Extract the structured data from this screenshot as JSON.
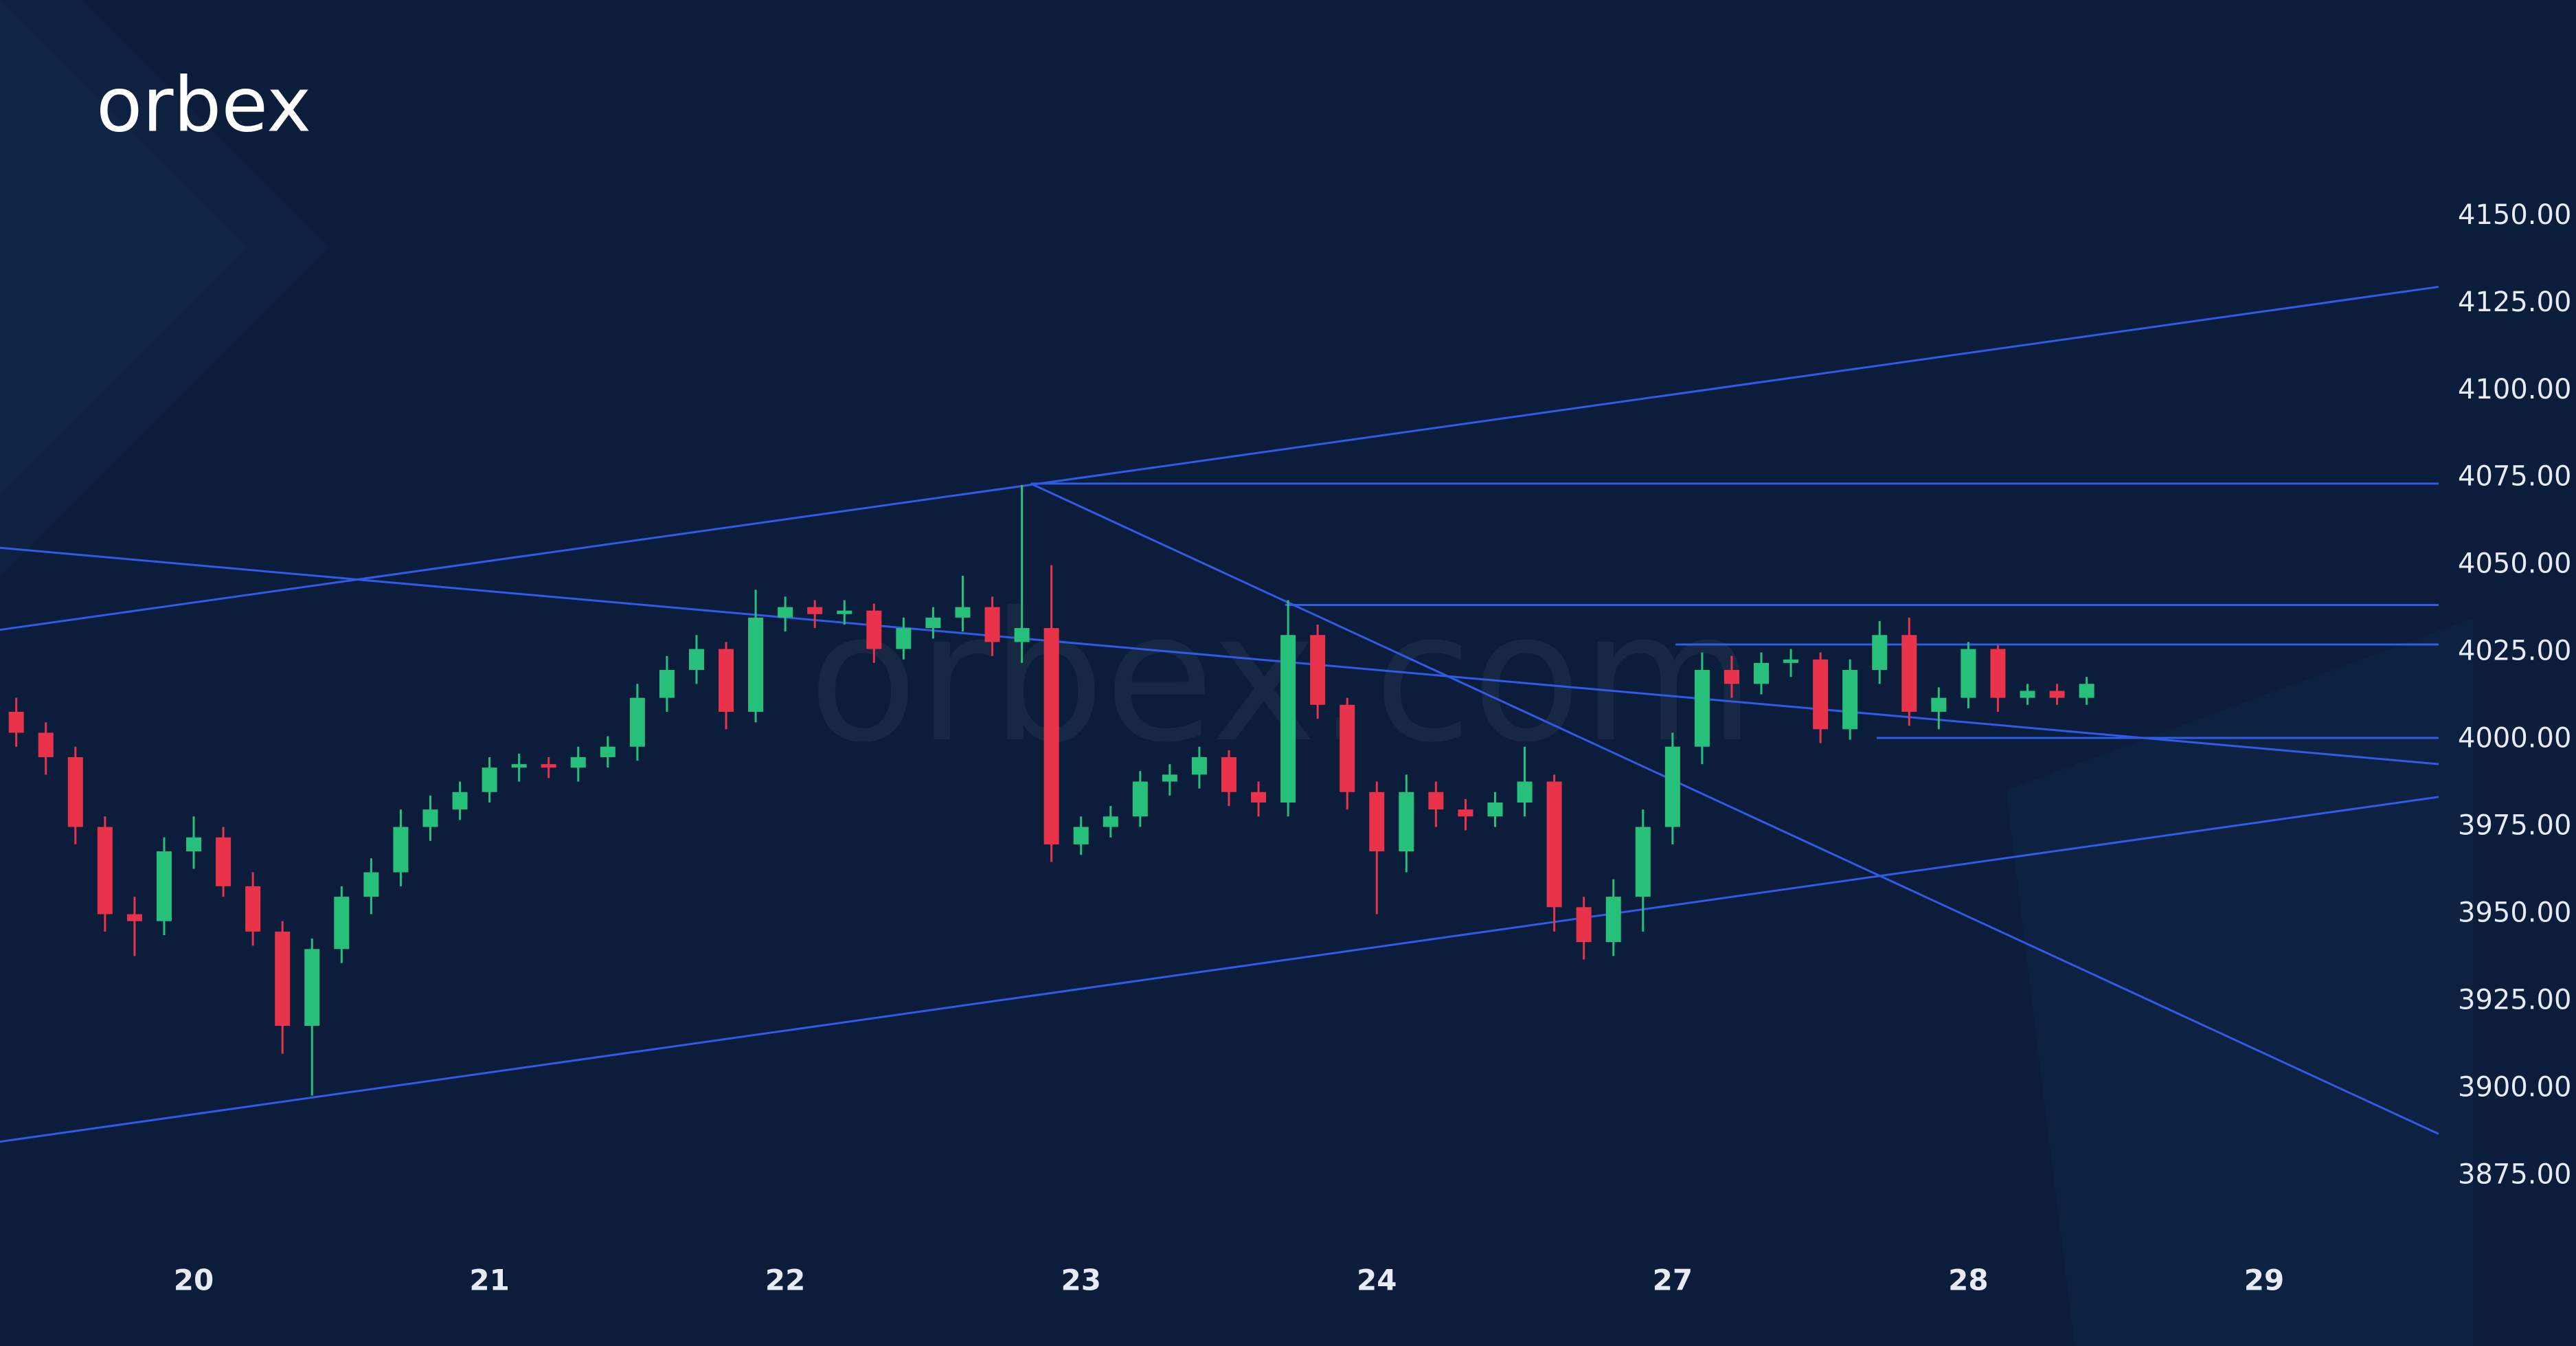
{
  "chart_data": {
    "type": "candlestick",
    "logo": "orbex",
    "watermark": "orbex.com",
    "x": [
      -0.6,
      -0.5,
      -0.4,
      -0.3,
      -0.2,
      -0.1,
      0,
      0.1,
      0.2,
      0.3,
      0.4,
      0.5,
      0.6,
      0.7,
      0.8,
      0.9,
      1,
      1.1,
      1.2,
      1.3,
      1.4,
      1.5,
      1.6,
      1.7,
      1.8,
      1.9,
      2,
      2.1,
      2.2,
      2.3,
      2.4,
      2.5,
      2.6,
      2.7,
      2.8,
      2.9,
      3,
      3.1,
      3.2,
      3.3,
      3.4,
      3.5,
      3.6,
      3.7,
      3.8,
      3.9,
      4,
      4.1,
      4.2,
      4.3,
      4.4,
      4.5,
      4.6,
      4.7,
      4.8,
      4.9,
      5,
      5.1,
      5.2,
      5.3,
      5.4,
      5.5,
      5.6,
      5.7,
      5.8,
      5.9,
      6,
      6.1,
      6.2,
      6.3,
      6.4
    ],
    "open": [
      4008,
      4002,
      3995,
      3975,
      3950,
      3948,
      3968,
      3972,
      3958,
      3945,
      3918,
      3940,
      3955,
      3962,
      3975,
      3980,
      3985,
      3992,
      3993,
      3992,
      3995,
      3998,
      4012,
      4020,
      4026,
      4008,
      4035,
      4038,
      4036,
      4037,
      4026,
      4032,
      4035,
      4038,
      4028,
      4032,
      3970,
      3975,
      3978,
      3988,
      3990,
      3995,
      3985,
      3982,
      4030,
      4010,
      3985,
      3968,
      3985,
      3980,
      3978,
      3982,
      3988,
      3952,
      3942,
      3955,
      3975,
      3998,
      4020,
      4016,
      4022,
      4023,
      4003,
      4020,
      4030,
      4008,
      4012,
      4026,
      4012,
      4014,
      4012
    ],
    "high": [
      4012,
      4005,
      3998,
      3978,
      3955,
      3972,
      3978,
      3975,
      3962,
      3948,
      3943,
      3958,
      3966,
      3980,
      3984,
      3988,
      3995,
      3996,
      3995,
      3998,
      4001,
      4016,
      4024,
      4030,
      4028,
      4043,
      4041,
      4040,
      4040,
      4039,
      4035,
      4038,
      4047,
      4041,
      4073,
      4050,
      3978,
      3981,
      3991,
      3993,
      3998,
      3997,
      3988,
      4040,
      4033,
      4012,
      3988,
      3990,
      3988,
      3983,
      3985,
      3998,
      3990,
      3955,
      3960,
      3980,
      4002,
      4025,
      4024,
      4025,
      4026,
      4025,
      4023,
      4034,
      4035,
      4015,
      4028,
      4027,
      4016,
      4016,
      4018
    ],
    "low": [
      3998,
      3990,
      3970,
      3945,
      3938,
      3944,
      3963,
      3955,
      3941,
      3910,
      3898,
      3936,
      3950,
      3958,
      3971,
      3977,
      3982,
      3988,
      3989,
      3988,
      3992,
      3994,
      4008,
      4016,
      4003,
      4005,
      4031,
      4032,
      4033,
      4022,
      4023,
      4029,
      4031,
      4024,
      4022,
      3965,
      3967,
      3972,
      3975,
      3984,
      3986,
      3981,
      3978,
      3978,
      4006,
      3980,
      3950,
      3962,
      3975,
      3974,
      3975,
      3978,
      3945,
      3937,
      3938,
      3945,
      3970,
      3993,
      4012,
      4013,
      4018,
      3999,
      4000,
      4016,
      4004,
      4003,
      4009,
      4008,
      4010,
      4010,
      4010
    ],
    "close": [
      4002,
      3995,
      3975,
      3950,
      3948,
      3968,
      3972,
      3958,
      3945,
      3918,
      3940,
      3955,
      3962,
      3975,
      3980,
      3985,
      3992,
      3993,
      3992,
      3995,
      3998,
      4012,
      4020,
      4026,
      4008,
      4035,
      4038,
      4036,
      4037,
      4026,
      4032,
      4035,
      4038,
      4028,
      4032,
      3970,
      3975,
      3978,
      3988,
      3990,
      3995,
      3985,
      3982,
      4030,
      4010,
      3985,
      3968,
      3985,
      3980,
      3978,
      3982,
      3988,
      3952,
      3942,
      3955,
      3975,
      3998,
      4020,
      4016,
      4022,
      4023,
      4003,
      4020,
      4030,
      4008,
      4012,
      4026,
      4012,
      4014,
      4012,
      4016
    ],
    "up_color": "#26c07a",
    "down_color": "#e8334a",
    "line_color": "#2f5be8",
    "trendlines": [
      {
        "x": [
          -0.655,
          7.59
        ],
        "y": [
          4031.5,
          4129.8
        ]
      },
      {
        "x": [
          -0.655,
          7.59
        ],
        "y": [
          3884.8,
          3983.6
        ]
      },
      {
        "x": [
          -0.655,
          7.59
        ],
        "y": [
          4055,
          3993
        ]
      },
      {
        "x": [
          2.83,
          7.59
        ],
        "y": [
          4073.4,
          3887
        ]
      },
      {
        "x": [
          2.83,
          7.59
        ],
        "y": [
          4073.4,
          4073.4
        ]
      },
      {
        "x": [
          3.69,
          7.59
        ],
        "y": [
          4038.6,
          4038.6
        ]
      },
      {
        "x": [
          5.01,
          7.59
        ],
        "y": [
          4027.3,
          4027.3
        ]
      },
      {
        "x": [
          5.69,
          7.59
        ],
        "y": [
          4000.5,
          4000.5
        ]
      }
    ],
    "xlim": [
      -0.655,
      7.59
    ],
    "xticks": [
      {
        "value": 0,
        "label": "20"
      },
      {
        "value": 1,
        "label": "21"
      },
      {
        "value": 2,
        "label": "22"
      },
      {
        "value": 3,
        "label": "23"
      },
      {
        "value": 4,
        "label": "24"
      },
      {
        "value": 5,
        "label": "27"
      },
      {
        "value": 6,
        "label": "28"
      },
      {
        "value": 7,
        "label": "29"
      }
    ],
    "ylim": [
      3854,
      4212
    ],
    "yticks": [
      {
        "value": 3875,
        "label": "3875.00"
      },
      {
        "value": 3900,
        "label": "3900.00"
      },
      {
        "value": 3925,
        "label": "3925.00"
      },
      {
        "value": 3950,
        "label": "3950.00"
      },
      {
        "value": 3975,
        "label": "3975.00"
      },
      {
        "value": 4000,
        "label": "4000.00"
      },
      {
        "value": 4025,
        "label": "4025.00"
      },
      {
        "value": 4050,
        "label": "4050.00"
      },
      {
        "value": 4075,
        "label": "4075.00"
      },
      {
        "value": 4100,
        "label": "4100.00"
      },
      {
        "value": 4125,
        "label": "4125.00"
      },
      {
        "value": 4150,
        "label": "4150.00"
      }
    ]
  }
}
